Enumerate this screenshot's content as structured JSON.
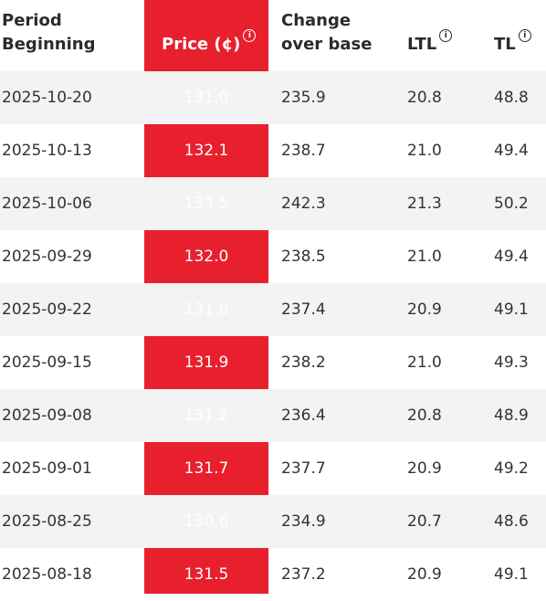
{
  "headers": {
    "period": [
      "Period",
      "Beginning"
    ],
    "price": "Price (¢)",
    "change": [
      "Change",
      "over base"
    ],
    "ltl": "LTL",
    "tl": "TL",
    "info_icon": "info-circle-icon"
  },
  "rows": [
    {
      "period": "2025-10-20",
      "price": "131.0",
      "change": "235.9",
      "ltl": "20.8",
      "tl": "48.8"
    },
    {
      "period": "2025-10-13",
      "price": "132.1",
      "change": "238.7",
      "ltl": "21.0",
      "tl": "49.4"
    },
    {
      "period": "2025-10-06",
      "price": "133.5",
      "change": "242.3",
      "ltl": "21.3",
      "tl": "50.2"
    },
    {
      "period": "2025-09-29",
      "price": "132.0",
      "change": "238.5",
      "ltl": "21.0",
      "tl": "49.4"
    },
    {
      "period": "2025-09-22",
      "price": "131.6",
      "change": "237.4",
      "ltl": "20.9",
      "tl": "49.1"
    },
    {
      "period": "2025-09-15",
      "price": "131.9",
      "change": "238.2",
      "ltl": "21.0",
      "tl": "49.3"
    },
    {
      "period": "2025-09-08",
      "price": "131.2",
      "change": "236.4",
      "ltl": "20.8",
      "tl": "48.9"
    },
    {
      "period": "2025-09-01",
      "price": "131.7",
      "change": "237.7",
      "ltl": "20.9",
      "tl": "49.2"
    },
    {
      "period": "2025-08-25",
      "price": "130.6",
      "change": "234.9",
      "ltl": "20.7",
      "tl": "48.6"
    },
    {
      "period": "2025-08-18",
      "price": "131.5",
      "change": "237.2",
      "ltl": "20.9",
      "tl": "49.1"
    }
  ],
  "colors": {
    "accent": "#e81f2d",
    "row_alt": "#f3f3f3"
  }
}
